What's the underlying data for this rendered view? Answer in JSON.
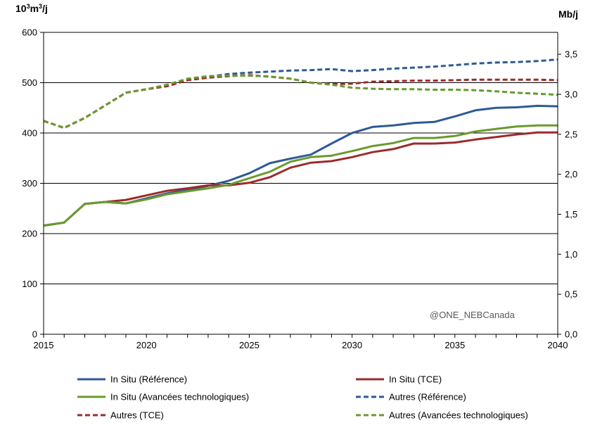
{
  "chart_data": {
    "type": "line",
    "title": "",
    "y_left_label": "10³m³/j",
    "y_left_label_base": "10",
    "y_left_label_exp1": "3",
    "y_left_label_mid": "m",
    "y_left_label_exp2": "3",
    "y_left_label_tail": "/j",
    "y_right_label": "Mb/j",
    "ylim_left": [
      0,
      600
    ],
    "ylim_right": [
      0,
      3.774
    ],
    "yticks_left": [
      "0",
      "100",
      "200",
      "300",
      "400",
      "500",
      "600"
    ],
    "yticks_right": [
      "0,0",
      "0,5",
      "1,0",
      "1,5",
      "2,0",
      "2,5",
      "3,0",
      "3,5"
    ],
    "yticks_right_values": [
      0,
      0.5,
      1.0,
      1.5,
      2.0,
      2.5,
      3.0,
      3.5
    ],
    "xlim": [
      2015,
      2040
    ],
    "xticks": [
      "2015",
      "2020",
      "2025",
      "2030",
      "2035",
      "2040"
    ],
    "x": [
      2015,
      2016,
      2017,
      2018,
      2019,
      2020,
      2021,
      2022,
      2023,
      2024,
      2025,
      2026,
      2027,
      2028,
      2029,
      2030,
      2031,
      2032,
      2033,
      2034,
      2035,
      2036,
      2037,
      2038,
      2039,
      2040
    ],
    "series": [
      {
        "name": "In Situ (Référence)",
        "color": "#2E5A96",
        "dash": false,
        "values": [
          216,
          222,
          259,
          263,
          260,
          270,
          280,
          287,
          295,
          305,
          320,
          340,
          349,
          357,
          379,
          400,
          412,
          415,
          420,
          422,
          433,
          445,
          450,
          451,
          454,
          453
        ]
      },
      {
        "name": "In Situ (TCE)",
        "color": "#9E2A2B",
        "dash": false,
        "values": [
          216,
          222,
          259,
          263,
          267,
          276,
          285,
          290,
          296,
          296,
          301,
          312,
          331,
          341,
          344,
          352,
          362,
          368,
          379,
          379,
          381,
          387,
          392,
          397,
          401,
          401
        ]
      },
      {
        "name": "In Situ (Avancées technologiques)",
        "color": "#6A9A2E",
        "dash": false,
        "values": [
          216,
          222,
          259,
          263,
          260,
          268,
          278,
          284,
          290,
          297,
          310,
          323,
          343,
          352,
          355,
          364,
          374,
          380,
          390,
          390,
          394,
          403,
          408,
          413,
          415,
          415
        ]
      },
      {
        "name": "Autres (Référence)",
        "color": "#2E5A96",
        "dash": true,
        "values": [
          424,
          410,
          430,
          455,
          480,
          487,
          493,
          505,
          512,
          517,
          520,
          522,
          524,
          525,
          527,
          523,
          525,
          528,
          530,
          532,
          535,
          538,
          540,
          541,
          543,
          546
        ]
      },
      {
        "name": "Autres (TCE)",
        "color": "#9E2A2B",
        "dash": true,
        "values": [
          424,
          410,
          430,
          455,
          480,
          487,
          493,
          505,
          510,
          513,
          515,
          512,
          508,
          500,
          497,
          498,
          502,
          503,
          504,
          504,
          505,
          506,
          506,
          506,
          506,
          505
        ]
      },
      {
        "name": "Autres (Avancées technologiques)",
        "color": "#6A9A2E",
        "dash": true,
        "values": [
          424,
          410,
          430,
          455,
          480,
          487,
          496,
          508,
          513,
          514,
          514,
          512,
          508,
          500,
          496,
          490,
          488,
          487,
          487,
          486,
          486,
          485,
          483,
          480,
          478,
          476
        ]
      }
    ],
    "watermark": "@ONE_NEBCanada",
    "grid": true,
    "legend_position": "bottom"
  }
}
